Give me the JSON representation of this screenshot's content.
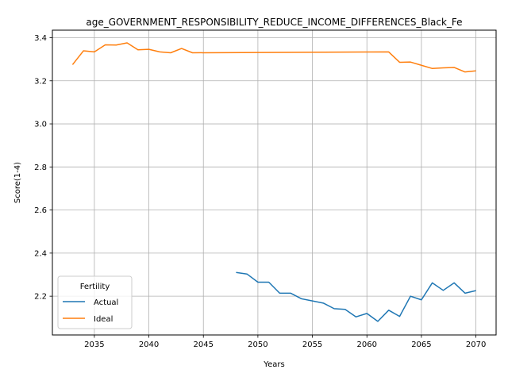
{
  "chart_data": {
    "type": "line",
    "title": "age_GOVERNMENT_RESPONSIBILITY_REDUCE_INCOME_DIFFERENCES_Black_Fe",
    "xlabel": "Years",
    "ylabel": "Score(1-4)",
    "xlim": [
      2031.15,
      2071.85
    ],
    "ylim": [
      2.02,
      3.435
    ],
    "xticks": [
      2035,
      2040,
      2045,
      2050,
      2055,
      2060,
      2065,
      2070
    ],
    "yticks": [
      2.2,
      2.4,
      2.6,
      2.8,
      3.0,
      3.2,
      3.4
    ],
    "xtick_labels": [
      "2035",
      "2040",
      "2045",
      "2050",
      "2055",
      "2060",
      "2065",
      "2070"
    ],
    "ytick_labels": [
      "2.2",
      "2.4",
      "2.6",
      "2.8",
      "3.0",
      "3.2",
      "3.4"
    ],
    "grid": true,
    "legend": {
      "title": "Fertility",
      "placement": "lower-left"
    },
    "series": [
      {
        "name": "Actual",
        "color": "#1f77b4",
        "x": [
          2048,
          2049,
          2050,
          2051,
          2052,
          2053,
          2054,
          2055,
          2056,
          2057,
          2058,
          2059,
          2060,
          2061,
          2062,
          2063,
          2064,
          2065,
          2066,
          2067,
          2068,
          2069,
          2070
        ],
        "y": [
          2.31,
          2.303,
          2.265,
          2.265,
          2.214,
          2.214,
          2.188,
          2.178,
          2.168,
          2.142,
          2.139,
          2.104,
          2.12,
          2.083,
          2.135,
          2.106,
          2.2,
          2.183,
          2.262,
          2.227,
          2.262,
          2.214,
          2.226
        ]
      },
      {
        "name": "Ideal",
        "color": "#ff7f0e",
        "x": [
          2033,
          2034,
          2035,
          2036,
          2037,
          2038,
          2039,
          2040,
          2041,
          2042,
          2043,
          2044,
          2062,
          2063,
          2064,
          2065,
          2066,
          2067,
          2068,
          2069,
          2070
        ],
        "y": [
          3.275,
          3.339,
          3.334,
          3.367,
          3.366,
          3.376,
          3.344,
          3.346,
          3.334,
          3.33,
          3.35,
          3.33,
          3.334,
          3.286,
          3.287,
          3.272,
          3.257,
          3.26,
          3.262,
          3.241,
          3.246
        ]
      }
    ]
  }
}
